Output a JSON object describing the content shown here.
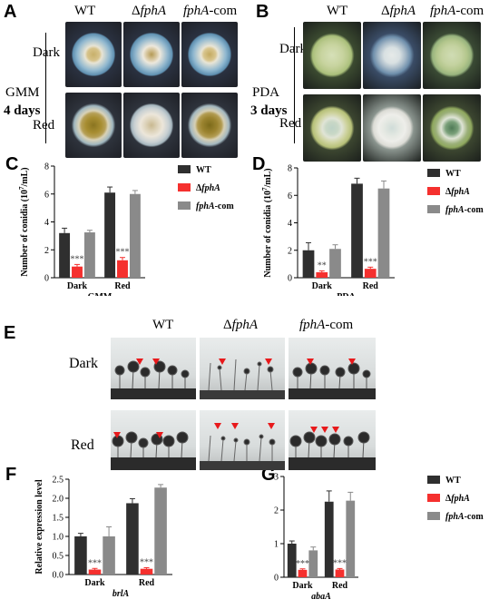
{
  "panels": {
    "A": {
      "letter": "A",
      "cols": [
        "WT",
        "Δ",
        "fphA",
        "fphA",
        "-com"
      ],
      "rows": [
        "Dark",
        "Red"
      ],
      "medium": "GMM",
      "days": "4 days"
    },
    "B": {
      "letter": "B",
      "cols": [
        "WT",
        "Δ",
        "fphA",
        "fphA",
        "-com"
      ],
      "rows": [
        "Dark",
        "Red"
      ],
      "medium": "PDA",
      "days": "3 days"
    },
    "E": {
      "letter": "E",
      "cols": [
        "WT",
        "Δ",
        "fphA",
        "fphA",
        "-com"
      ],
      "rows": [
        "Dark",
        "Red"
      ]
    }
  },
  "colors": {
    "wt": "#2f2f2f",
    "dfpha": "#f5302e",
    "com": "#8a8a8a"
  },
  "chart_data": [
    {
      "letter": "C",
      "type": "bar",
      "categories": [
        "Dark",
        "Red"
      ],
      "group_label": "GMM",
      "ylabel": "Number of conidia (10",
      "ylabel_sup": "7",
      "ylabel_end": "/mL)",
      "ylim": [
        0,
        8
      ],
      "yticks": [
        "0",
        "2",
        "4",
        "6",
        "8"
      ],
      "series": [
        {
          "name": "WT",
          "values": [
            3.2,
            6.1
          ],
          "err": [
            0.35,
            0.4
          ]
        },
        {
          "name": "ΔfphA",
          "values": [
            0.8,
            1.25
          ],
          "err": [
            0.15,
            0.2
          ]
        },
        {
          "name": "fphA-com",
          "values": [
            3.25,
            6.0
          ],
          "err": [
            0.15,
            0.25
          ]
        }
      ],
      "sig": [
        "***",
        "***"
      ],
      "legend": "top-right"
    },
    {
      "letter": "D",
      "type": "bar",
      "categories": [
        "Dark",
        "Red"
      ],
      "group_label": "PDA",
      "ylabel": "Number of conidia (10",
      "ylabel_sup": "7",
      "ylabel_end": "/mL)",
      "ylim": [
        0,
        8
      ],
      "yticks": [
        "0",
        "2",
        "4",
        "6",
        "8"
      ],
      "series": [
        {
          "name": "WT",
          "values": [
            2.0,
            6.85
          ],
          "err": [
            0.55,
            0.4
          ]
        },
        {
          "name": "ΔfphA",
          "values": [
            0.4,
            0.65
          ],
          "err": [
            0.1,
            0.12
          ]
        },
        {
          "name": "fphA-com",
          "values": [
            2.1,
            6.5
          ],
          "err": [
            0.3,
            0.55
          ]
        }
      ],
      "sig": [
        "**",
        "***"
      ],
      "legend": "top-right"
    },
    {
      "letter": "F",
      "type": "bar",
      "categories": [
        "Dark",
        "Red"
      ],
      "group_label": "brlA",
      "ylabel": "Relative expression level",
      "ylim": [
        0,
        2.5
      ],
      "yticks": [
        "0.0",
        "0.5",
        "1.0",
        "1.5",
        "2.0",
        "2.5"
      ],
      "series": [
        {
          "name": "WT",
          "values": [
            1.0,
            1.87
          ],
          "err": [
            0.08,
            0.12
          ]
        },
        {
          "name": "ΔfphA",
          "values": [
            0.13,
            0.15
          ],
          "err": [
            0.03,
            0.03
          ]
        },
        {
          "name": "fphA-com",
          "values": [
            1.0,
            2.28
          ],
          "err": [
            0.25,
            0.08
          ]
        }
      ],
      "sig": [
        "***",
        "***"
      ]
    },
    {
      "letter": "G",
      "type": "bar",
      "categories": [
        "Dark",
        "Red"
      ],
      "group_label": "abaA",
      "ylim": [
        0,
        3
      ],
      "yticks": [
        "0",
        "1",
        "2",
        "3"
      ],
      "series": [
        {
          "name": "WT",
          "values": [
            1.0,
            2.25
          ],
          "err": [
            0.08,
            0.32
          ]
        },
        {
          "name": "ΔfphA",
          "values": [
            0.22,
            0.23
          ],
          "err": [
            0.03,
            0.03
          ]
        },
        {
          "name": "fphA-com",
          "values": [
            0.8,
            2.28
          ],
          "err": [
            0.1,
            0.25
          ]
        }
      ],
      "sig": [
        "***",
        "***"
      ],
      "legend": "right"
    }
  ]
}
